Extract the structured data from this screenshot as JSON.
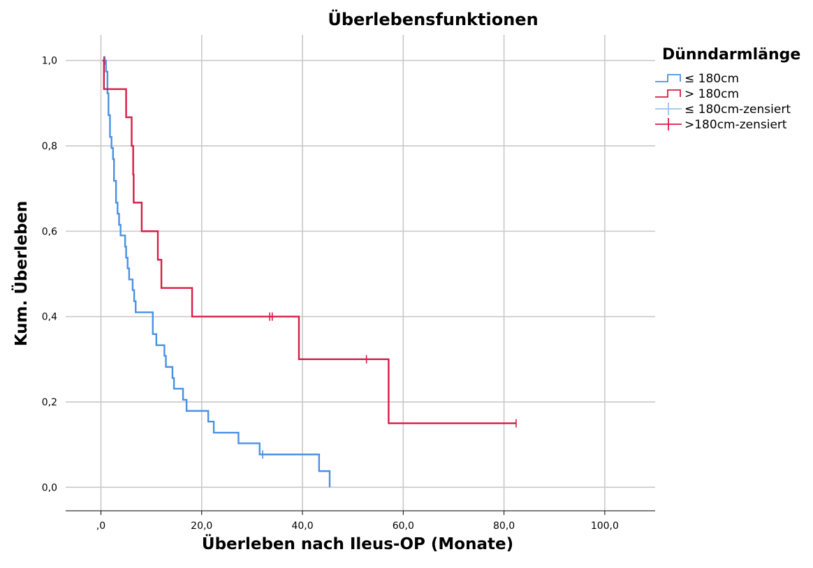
{
  "chart_data": {
    "type": "line",
    "title": "Überlebensfunktionen",
    "xlabel": "Überleben nach Ileus-OP (Monate)",
    "ylabel": "Kum. Überleben",
    "xlim": [
      -7,
      110
    ],
    "ylim": [
      -0.055,
      1.06
    ],
    "x_ticks": [
      0,
      20,
      40,
      60,
      80,
      100
    ],
    "x_tick_labels": [
      ",0",
      "20,0",
      "40,0",
      "60,0",
      "80,0",
      "100,0"
    ],
    "y_ticks": [
      0,
      0.2,
      0.4,
      0.6,
      0.8,
      1.0
    ],
    "y_tick_labels": [
      "0,0",
      "0,2",
      "0,4",
      "0,6",
      "0,8",
      "1,0"
    ],
    "grid": true,
    "legend": {
      "title": "Dünndarmlänge",
      "position": "top-right",
      "entries": [
        {
          "label": "≤ 180cm",
          "kind": "step",
          "color": "#4a90e2"
        },
        {
          "label": "> 180cm",
          "kind": "step",
          "color": "#d81b45"
        },
        {
          "label": "≤ 180cm-zensiert",
          "kind": "censor",
          "color": "#9cc3ec"
        },
        {
          "label": ">180cm-zensiert",
          "kind": "censor",
          "color": "#d81b45"
        }
      ]
    },
    "series": [
      {
        "name": "≤ 180cm",
        "color": "#4a90e2",
        "steps": [
          [
            0.5,
            1.0
          ],
          [
            1.0,
            0.974
          ],
          [
            1.3,
            0.923
          ],
          [
            1.5,
            0.872
          ],
          [
            1.8,
            0.821
          ],
          [
            2.1,
            0.795
          ],
          [
            2.4,
            0.769
          ],
          [
            2.6,
            0.718
          ],
          [
            3.0,
            0.667
          ],
          [
            3.3,
            0.641
          ],
          [
            3.6,
            0.615
          ],
          [
            3.9,
            0.59
          ],
          [
            4.8,
            0.564
          ],
          [
            5.0,
            0.538
          ],
          [
            5.3,
            0.513
          ],
          [
            5.6,
            0.487
          ],
          [
            6.3,
            0.462
          ],
          [
            6.6,
            0.436
          ],
          [
            6.9,
            0.41
          ],
          [
            10.3,
            0.359
          ],
          [
            11.0,
            0.333
          ],
          [
            12.6,
            0.308
          ],
          [
            12.9,
            0.282
          ],
          [
            14.2,
            0.256
          ],
          [
            14.5,
            0.231
          ],
          [
            16.3,
            0.205
          ],
          [
            17.0,
            0.179
          ],
          [
            21.3,
            0.154
          ],
          [
            22.4,
            0.128
          ],
          [
            27.3,
            0.103
          ],
          [
            31.5,
            0.077
          ],
          [
            43.3,
            0.038
          ],
          [
            45.4,
            0.0
          ]
        ],
        "end_x": 45.4,
        "censored": [
          [
            0.8,
            1.0
          ],
          [
            32.1,
            0.077
          ]
        ]
      },
      {
        "name": "> 180cm",
        "color": "#d81b45",
        "steps": [
          [
            0.3,
            1.0
          ],
          [
            0.6,
            0.933
          ],
          [
            5.0,
            0.867
          ],
          [
            6.1,
            0.8
          ],
          [
            6.4,
            0.733
          ],
          [
            6.5,
            0.667
          ],
          [
            8.1,
            0.6
          ],
          [
            11.3,
            0.533
          ],
          [
            12.0,
            0.467
          ],
          [
            18.1,
            0.4
          ],
          [
            39.3,
            0.3
          ],
          [
            57.1,
            0.15
          ]
        ],
        "end_x": 82.4,
        "censored": [
          [
            0.6,
            1.0
          ],
          [
            33.5,
            0.4
          ],
          [
            34.0,
            0.4
          ],
          [
            52.7,
            0.3
          ],
          [
            82.4,
            0.15
          ]
        ]
      }
    ]
  }
}
